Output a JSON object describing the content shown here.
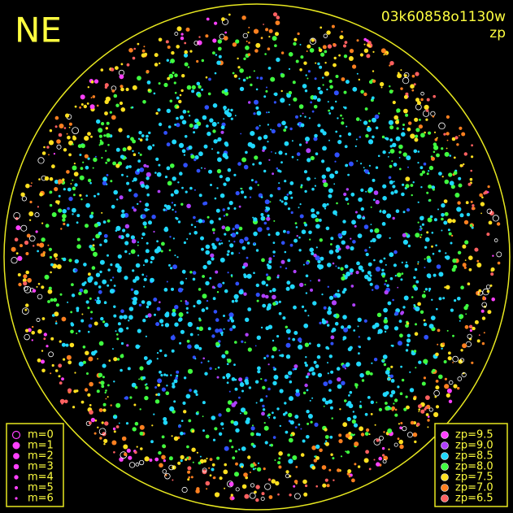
{
  "header": {
    "corner": "NE",
    "frame_id": "03k60858o1130w",
    "quantity": "zp"
  },
  "magnitude_legend": {
    "items": [
      {
        "label": "m=0"
      },
      {
        "label": "m=1"
      },
      {
        "label": "m=2"
      },
      {
        "label": "m=3"
      },
      {
        "label": "m=4"
      },
      {
        "label": "m=5"
      },
      {
        "label": "m=6"
      }
    ]
  },
  "zp_legend": {
    "items": [
      {
        "label": "zp=9.5",
        "color": "#ff40ff"
      },
      {
        "label": "zp=9.0",
        "color": "#b040ff"
      },
      {
        "label": "zp=8.5",
        "color": "#20d8ff"
      },
      {
        "label": "zp=8.0",
        "color": "#40ff40"
      },
      {
        "label": "zp=7.5",
        "color": "#ffe020"
      },
      {
        "label": "zp=7.0",
        "color": "#ff8020"
      },
      {
        "label": "zp=6.5",
        "color": "#ff6060"
      }
    ]
  }
}
